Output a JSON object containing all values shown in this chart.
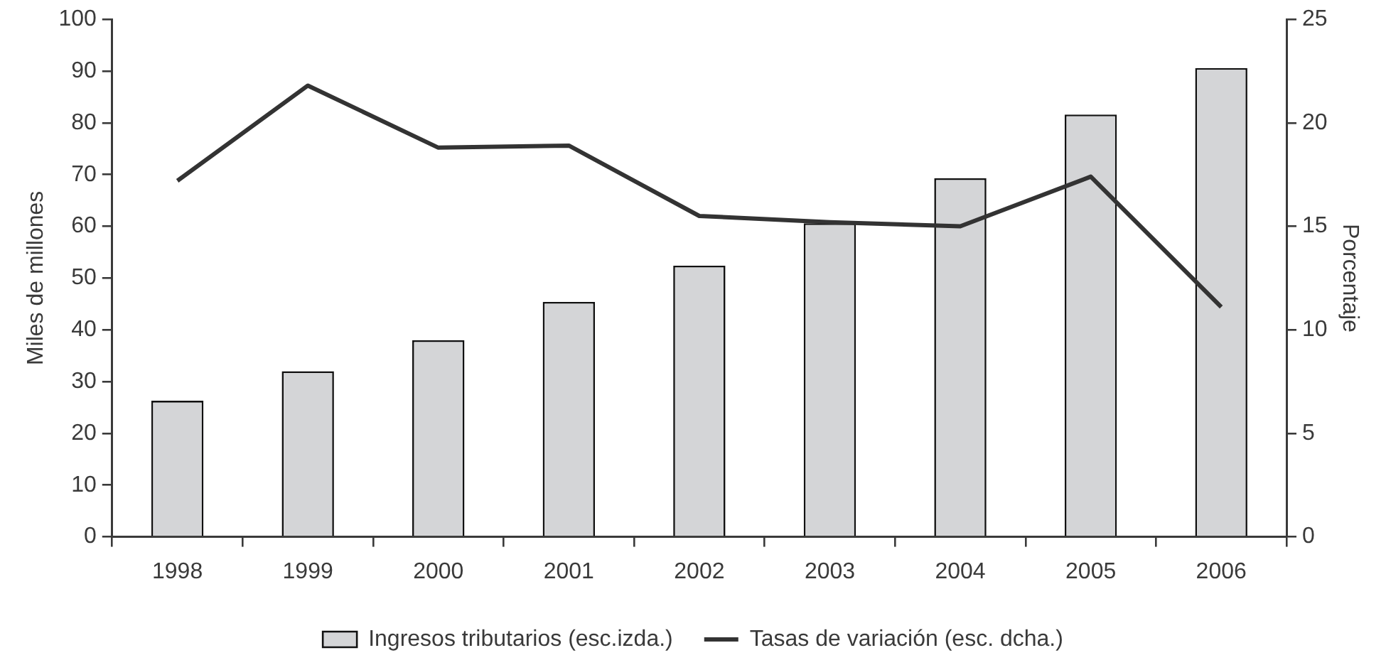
{
  "chart_data": {
    "type": "bar",
    "categories": [
      "1998",
      "1999",
      "2000",
      "2001",
      "2002",
      "2003",
      "2004",
      "2005",
      "2006"
    ],
    "ylabel": "Miles de millones",
    "y2label": "Porcentaje",
    "ylim": [
      0,
      100
    ],
    "yticks": [
      0,
      10,
      20,
      30,
      40,
      50,
      60,
      70,
      80,
      90,
      100
    ],
    "y2lim": [
      0,
      25
    ],
    "y2ticks": [
      0,
      5,
      10,
      15,
      20,
      25
    ],
    "grid": false,
    "legend": "bottom",
    "series": [
      {
        "name": "Ingresos tributarios (esc.izda.)",
        "color": "#d4d5d7",
        "values": [
          26.3,
          32.0,
          38.0,
          45.4,
          52.4,
          60.6,
          69.3,
          81.6,
          90.6
        ]
      },
      {
        "name": "Tasas de variación (esc. dcha.)",
        "type": "line",
        "axis": "y2",
        "color": "#333333",
        "values": [
          17.2,
          21.8,
          18.8,
          18.9,
          15.5,
          15.2,
          15.0,
          17.4,
          11.1
        ]
      }
    ]
  }
}
